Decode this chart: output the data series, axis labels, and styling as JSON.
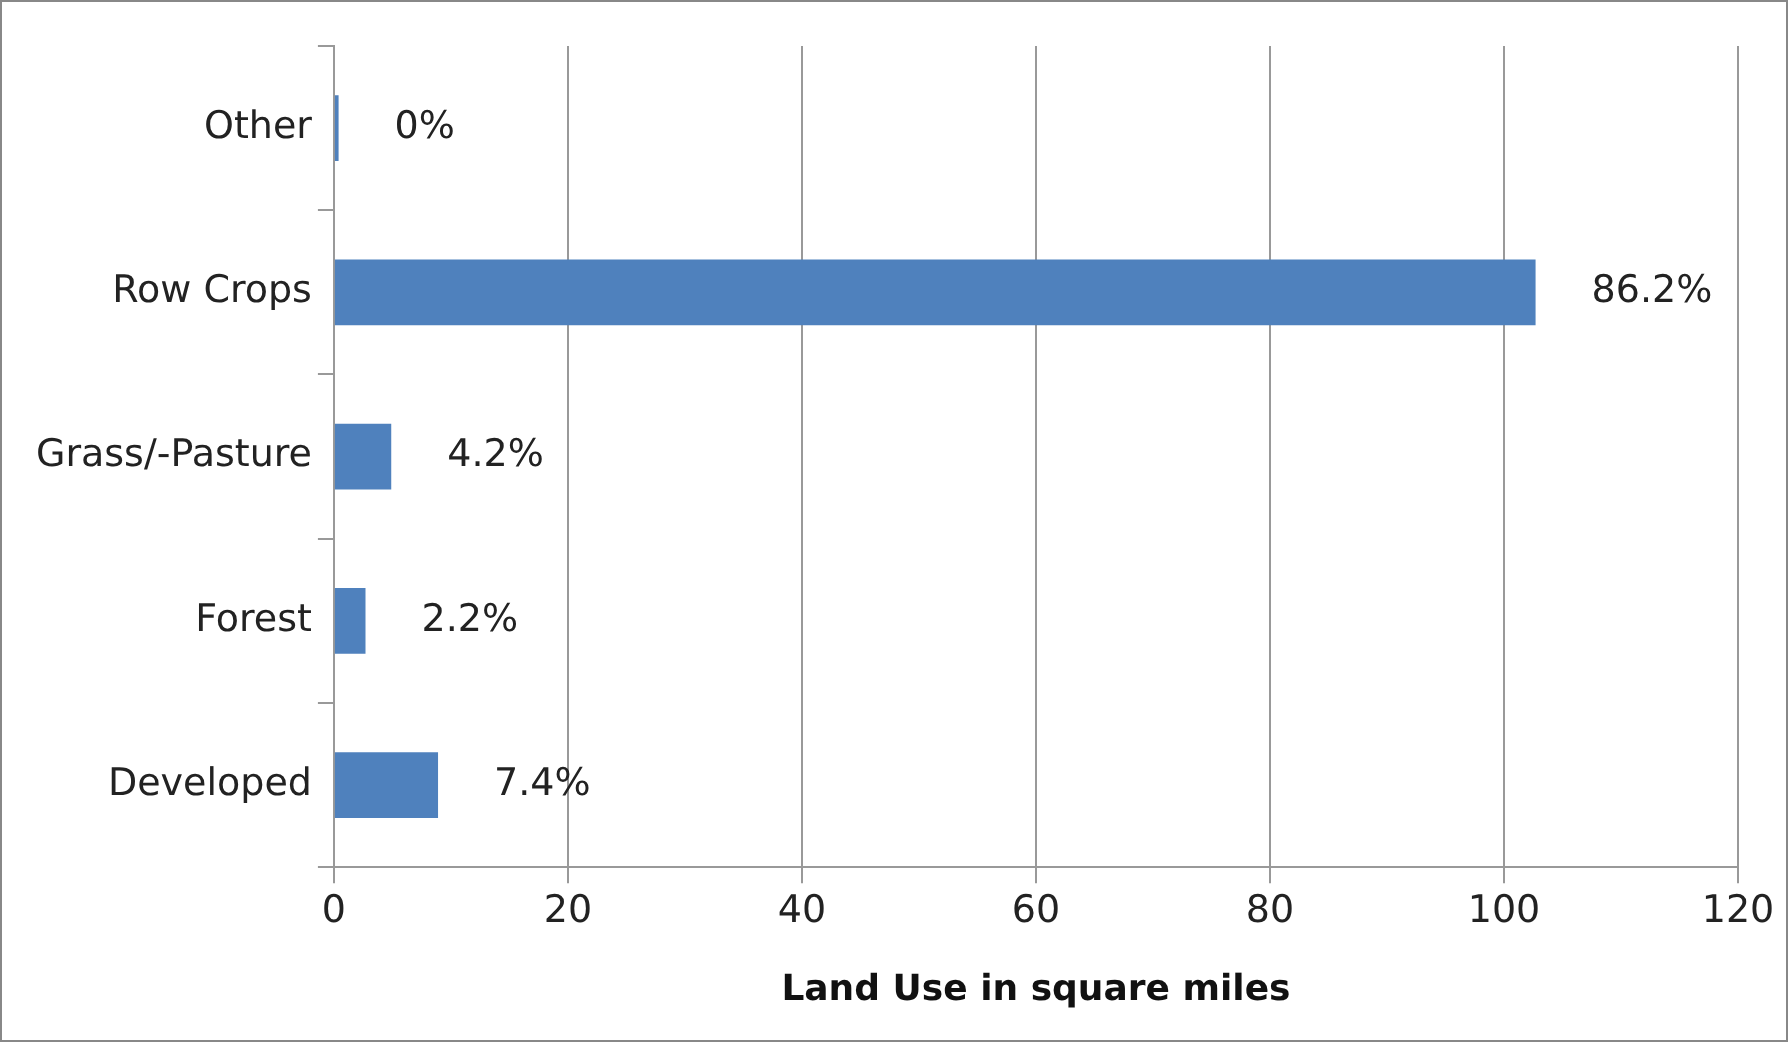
{
  "chart_data": {
    "type": "bar",
    "orientation": "horizontal",
    "xlabel": "Land Use in square miles",
    "categories": [
      "Other",
      "Row Crops",
      "Grass/-Pasture",
      "Forest",
      "Developed"
    ],
    "values": [
      0.4,
      102.7,
      4.9,
      2.7,
      8.9
    ],
    "annotations": [
      {
        "text": "0%",
        "x": 0.4,
        "y": "Other"
      },
      {
        "text": "86.2%",
        "x": 102.7,
        "y": "Row Crops"
      },
      {
        "text": "4.2%",
        "x": 4.9,
        "y": "Grass/-Pasture"
      },
      {
        "text": "2.2%",
        "x": 2.7,
        "y": "Forest"
      },
      {
        "text": "7.4%",
        "x": 8.9,
        "y": "Developed"
      }
    ],
    "color": "#4f81bd",
    "xlim": [
      0,
      120
    ],
    "xticks": [
      0,
      20,
      40,
      60,
      80,
      100,
      120
    ],
    "grid": "x",
    "legend": false
  }
}
